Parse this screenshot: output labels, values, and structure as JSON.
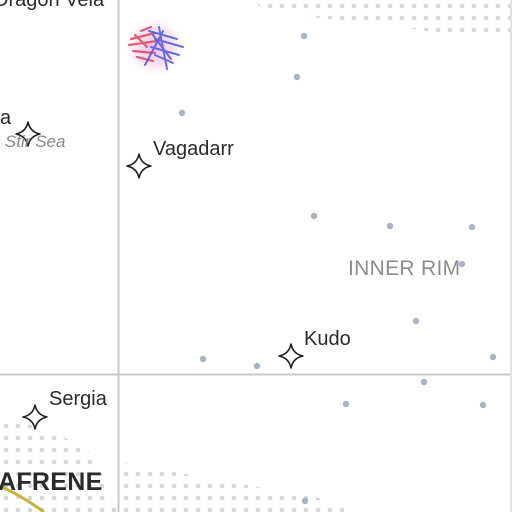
{
  "colors": {
    "background": "#ffffff",
    "grid_line": "#c8c8c8",
    "star_outline": "#1e1e1e",
    "minor_star": "#a9b3c3",
    "dotted_band": "#d6d6d6",
    "hyperlane": "#c9b23c",
    "nebula_red": "#e0506a",
    "nebula_blue": "#4a58e8",
    "nebula_glow": "#f3c3e0"
  },
  "labels": {
    "top_cut_label": "Dragon Vela",
    "left_edge_system": "a",
    "nebula": "Stir Sea",
    "vagadarr": "Vagadarr",
    "kudo": "Kudo",
    "sergia": "Sergia",
    "sector": "INNER RIM",
    "region": "AFRENE"
  },
  "icons": {
    "major_system": "four-point-star-icon",
    "minor_system": "dot-icon",
    "nebula": "nebula-icon"
  }
}
